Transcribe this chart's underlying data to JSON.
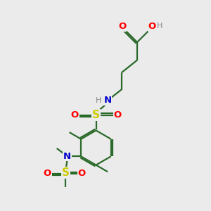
{
  "bg_color": "#ebebeb",
  "colors": {
    "O": "#ff0000",
    "N": "#0000cc",
    "S": "#cccc00",
    "H": "#888888",
    "C": "#2a6a2a"
  },
  "lw": 1.6,
  "fs": 9.5
}
